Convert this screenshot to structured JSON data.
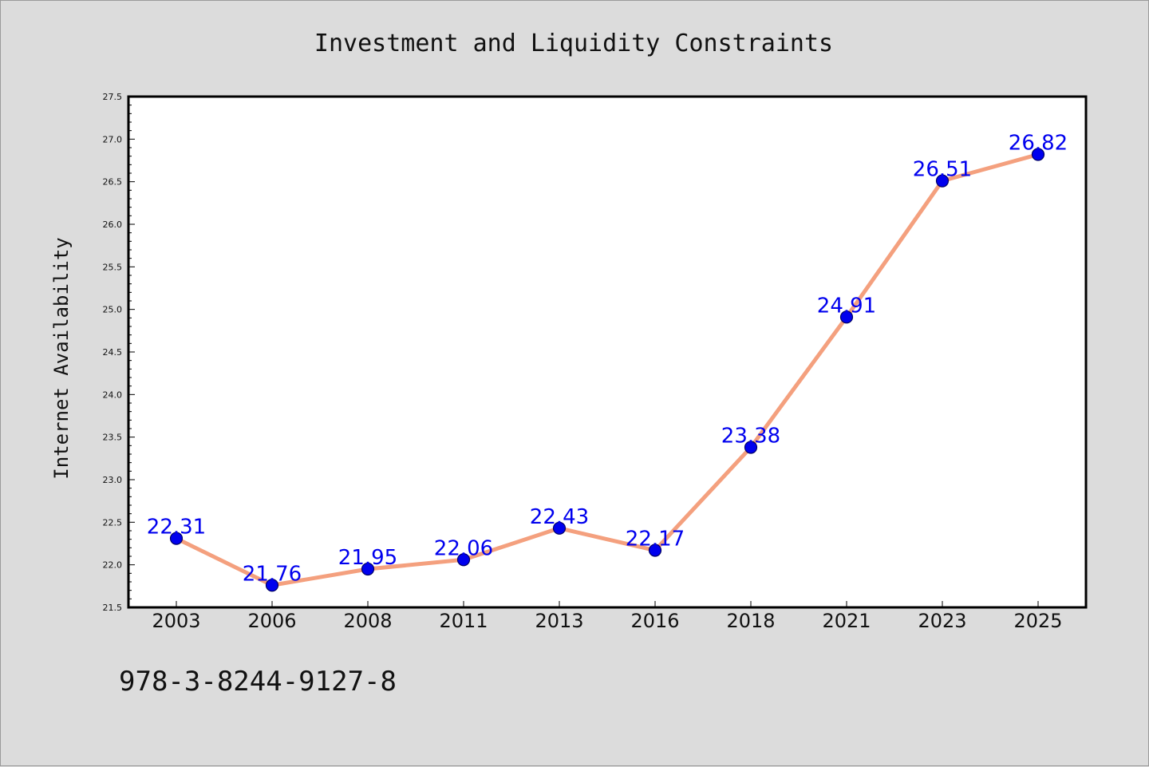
{
  "chart_data": {
    "type": "line",
    "title": "Investment and Liquidity Constraints",
    "xlabel": "",
    "ylabel": "Internet Availability",
    "categories": [
      "2003",
      "2006",
      "2008",
      "2011",
      "2013",
      "2016",
      "2018",
      "2021",
      "2023",
      "2025"
    ],
    "series": [
      {
        "values": [
          22.31,
          21.76,
          21.95,
          22.06,
          22.43,
          22.17,
          23.38,
          24.91,
          26.51,
          26.82
        ],
        "labels": [
          "22.31",
          "21.76",
          "21.95",
          "22.06",
          "22.43",
          "22.17",
          "23.38",
          "24.91",
          "26.51",
          "26.82"
        ]
      }
    ],
    "ylim": [
      21.5,
      27.5
    ],
    "yticks": [
      "21.5",
      "22.0",
      "22.5",
      "23.0",
      "23.5",
      "24.0",
      "24.5",
      "25.0",
      "25.5",
      "26.0",
      "26.5",
      "27.0",
      "27.5"
    ],
    "grid": false,
    "legend": "none",
    "colors": {
      "line": "#f4a07e",
      "marker": "#0000ee",
      "marker_edge": "#000066",
      "label": "#0000ee",
      "plot_background": "#ffffff",
      "page_background": "#dcdcdc"
    }
  },
  "footnote": "978-3-8244-9127-8"
}
